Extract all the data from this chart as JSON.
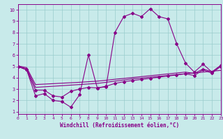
{
  "xlabel": "Windchill (Refroidissement éolien,°C)",
  "bg_color": "#c8eaea",
  "line_color": "#880088",
  "grid_color": "#99cccc",
  "x_data": [
    0,
    1,
    2,
    3,
    4,
    5,
    6,
    7,
    8,
    9,
    10,
    11,
    12,
    13,
    14,
    15,
    16,
    17,
    18,
    19,
    20,
    21,
    22,
    23
  ],
  "line1_y": [
    5.0,
    4.7,
    2.4,
    2.6,
    2.0,
    1.9,
    1.4,
    2.5,
    6.0,
    3.1,
    3.2,
    8.0,
    9.4,
    9.7,
    9.4,
    10.1,
    9.4,
    9.2,
    7.0,
    5.3,
    4.5,
    5.2,
    4.5,
    5.1
  ],
  "line2_y": [
    5.0,
    4.7,
    2.9,
    2.9,
    2.4,
    2.3,
    2.8,
    3.0,
    3.15,
    3.1,
    3.25,
    3.5,
    3.65,
    3.75,
    3.85,
    3.95,
    4.05,
    4.15,
    4.25,
    4.35,
    4.2,
    4.7,
    4.4,
    5.0
  ],
  "line3_y": [
    5.0,
    4.8,
    3.15,
    3.2,
    3.25,
    3.3,
    3.35,
    3.4,
    3.45,
    3.5,
    3.6,
    3.7,
    3.8,
    3.9,
    3.97,
    4.05,
    4.13,
    4.2,
    4.28,
    4.35,
    4.43,
    4.5,
    4.58,
    4.65
  ],
  "line4_y": [
    5.05,
    4.9,
    3.4,
    3.44,
    3.48,
    3.52,
    3.56,
    3.6,
    3.65,
    3.7,
    3.78,
    3.86,
    3.94,
    4.02,
    4.1,
    4.18,
    4.26,
    4.34,
    4.42,
    4.5,
    4.38,
    4.78,
    4.52,
    5.08
  ],
  "xlim": [
    0,
    23
  ],
  "ylim": [
    0.8,
    10.5
  ],
  "yticks": [
    1,
    2,
    3,
    4,
    5,
    6,
    7,
    8,
    9,
    10
  ],
  "xticks": [
    0,
    1,
    2,
    3,
    4,
    5,
    6,
    7,
    8,
    9,
    10,
    11,
    12,
    13,
    14,
    15,
    16,
    17,
    18,
    19,
    20,
    21,
    22,
    23
  ],
  "marker_size": 2.0,
  "line_width": 0.8,
  "tick_fontsize": 4.5,
  "xlabel_fontsize": 5.5
}
